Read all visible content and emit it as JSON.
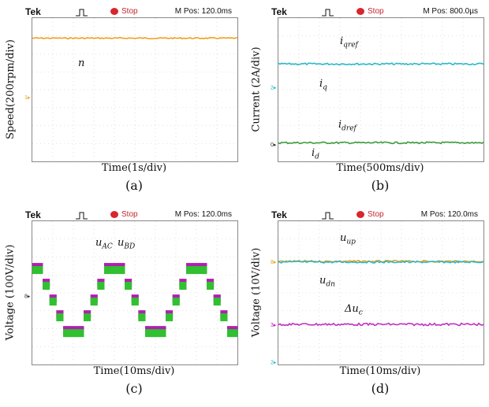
{
  "chart_data": [
    {
      "type": "line",
      "tag": "(a)",
      "scope": {
        "brand": "Tek",
        "status": "Stop",
        "mpos": "M Pos: 120.0ms"
      },
      "xlabel": "Time(1s/div)",
      "ylabel": "Speed(200rpm/div)",
      "channel_markers": [
        {
          "label": "1",
          "color": "#e8a020",
          "level": 0.55
        }
      ],
      "series": [
        {
          "color": "#f0a020",
          "shape": "flat",
          "level": 0.14,
          "noise": 0.004
        }
      ],
      "annotations": [
        {
          "text": "n",
          "sub": ""
        }
      ]
    },
    {
      "type": "line",
      "tag": "(b)",
      "scope": {
        "brand": "Tek",
        "status": "Stop",
        "mpos": "M Pos: 800.0µs"
      },
      "xlabel": "Time(500ms/div)",
      "ylabel": "Current (2A/div)",
      "channel_markers": [
        {
          "label": "2",
          "color": "#20b8c8",
          "level": 0.48
        },
        {
          "label": "0",
          "color": "#333333",
          "level": 0.88
        }
      ],
      "series": [
        {
          "color": "#2ab8c8",
          "shape": "flat",
          "level": 0.32,
          "noise": 0.006
        },
        {
          "color": "#3a9a3a",
          "shape": "flat",
          "level": 0.87,
          "noise": 0.006
        }
      ],
      "annotations": [
        {
          "text": "i",
          "sub": "qref"
        },
        {
          "text": "i",
          "sub": "q"
        },
        {
          "text": "i",
          "sub": "dref"
        },
        {
          "text": "i",
          "sub": "d"
        }
      ]
    },
    {
      "type": "line",
      "tag": "(c)",
      "scope": {
        "brand": "Tek",
        "status": "Stop",
        "mpos": "M Pos: 120.0ms"
      },
      "xlabel": "Time(10ms/div)",
      "ylabel": "Voltage (100V/div)",
      "channel_markers": [
        {
          "label": "8",
          "color": "#333333",
          "level": 0.52
        }
      ],
      "series": [
        {
          "color": "#b020b0",
          "shape": "staircase",
          "level": 0.55,
          "amplitude": 0.22,
          "cycles": 2.5
        },
        {
          "color": "#30c030",
          "shape": "staircase",
          "level": 0.55,
          "amplitude": 0.22,
          "cycles": 2.5
        }
      ],
      "annotations": [
        {
          "text": "u",
          "sub": "AC"
        },
        {
          "text": "u",
          "sub": "BD"
        }
      ]
    },
    {
      "type": "line",
      "tag": "(d)",
      "scope": {
        "brand": "Tek",
        "status": "Stop",
        "mpos": "M Pos: 120.0ms"
      },
      "xlabel": "Time(10ms/div)",
      "ylabel": "Voltage (10V/div)",
      "channel_markers": [
        {
          "label": "8",
          "color": "#e8a020",
          "level": 0.28
        },
        {
          "label": "3",
          "color": "#c020c0",
          "level": 0.72
        },
        {
          "label": "2",
          "color": "#20b8c8",
          "level": 0.98
        }
      ],
      "series": [
        {
          "color": "#e8a020",
          "shape": "flat",
          "level": 0.28,
          "noise": 0.006
        },
        {
          "color": "#2ab8c8",
          "shape": "flat",
          "level": 0.285,
          "noise": 0.006
        },
        {
          "color": "#c030c0",
          "shape": "flat",
          "level": 0.72,
          "noise": 0.008
        }
      ],
      "annotations": [
        {
          "text": "u",
          "sub": "up"
        },
        {
          "text": "u",
          "sub": "dn"
        },
        {
          "text": "Δu",
          "sub": "c"
        }
      ]
    }
  ]
}
